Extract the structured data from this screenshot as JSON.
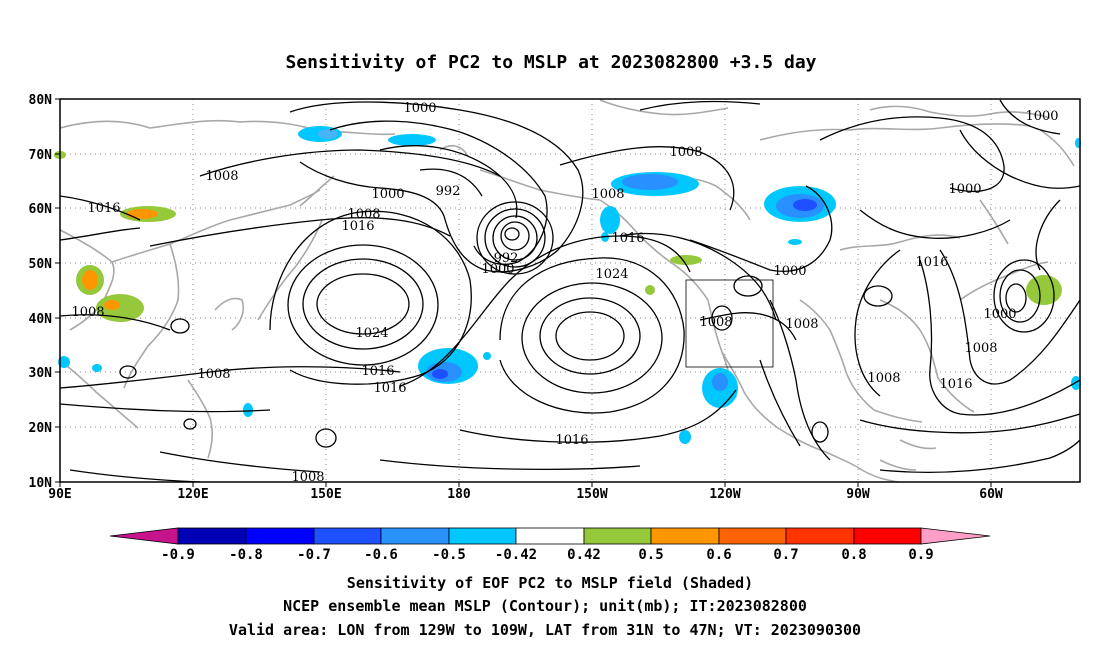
{
  "title": "Sensitivity of PC2 to MSLP at 2023082800 +3.5 day",
  "lat_labels": [
    "80N",
    "70N",
    "60N",
    "50N",
    "40N",
    "30N",
    "20N",
    "10N"
  ],
  "lon_labels": [
    "90E",
    "120E",
    "150E",
    "180",
    "150W",
    "120W",
    "90W",
    "60W"
  ],
  "contour_labels": {
    "l1000a": "1000",
    "l1000b": "1000",
    "l1000c": "1000",
    "l1000d": "1000",
    "l1000e": "1000",
    "l1000f": "1000",
    "l992a": "992",
    "l992b": "992",
    "l1008a": "1008",
    "l1008b": "1008",
    "l1008c": "1008",
    "l1008d": "1008",
    "l1008e": "1008",
    "l1008f": "1008",
    "l1008g": "1008",
    "l1008h": "1008",
    "l1008i": "1008",
    "l1008j": "1008",
    "l1008k": "1008",
    "l1016a": "1016",
    "l1016b": "1016",
    "l1016c": "1016",
    "l1016d": "1016",
    "l1016e": "1016",
    "l1016f": "1016",
    "l1016g": "1016",
    "l1016h": "1016",
    "l1024a": "1024",
    "l1024b": "1024"
  },
  "colorbar": {
    "labels": [
      "-0.9",
      "-0.8",
      "-0.7",
      "-0.6",
      "-0.5",
      "-0.42",
      "0.42",
      "0.5",
      "0.6",
      "0.7",
      "0.8",
      "0.9"
    ],
    "colors": {
      "low_end": "#c8148c",
      "c1": "#0000b4",
      "c2": "#0000ff",
      "c3": "#1e50ff",
      "c4": "#2891ff",
      "c5": "#46b4f5",
      "c6": "#00c8ff",
      "c7": "#ffffff",
      "c8": "#96c83c",
      "c9": "#ff9600",
      "c10": "#ff6400",
      "c11": "#ff3200",
      "c12": "#ff0000",
      "high_end": "#ff9fc8"
    }
  },
  "footer": {
    "line1": "Sensitivity of EOF PC2 to MSLP field (Shaded)",
    "line2": "NCEP ensemble mean MSLP (Contour); unit(mb); IT:2023082800",
    "line3": "Valid area: LON from 129W to 109W, LAT from 31N to 47N; VT: 2023090300"
  }
}
